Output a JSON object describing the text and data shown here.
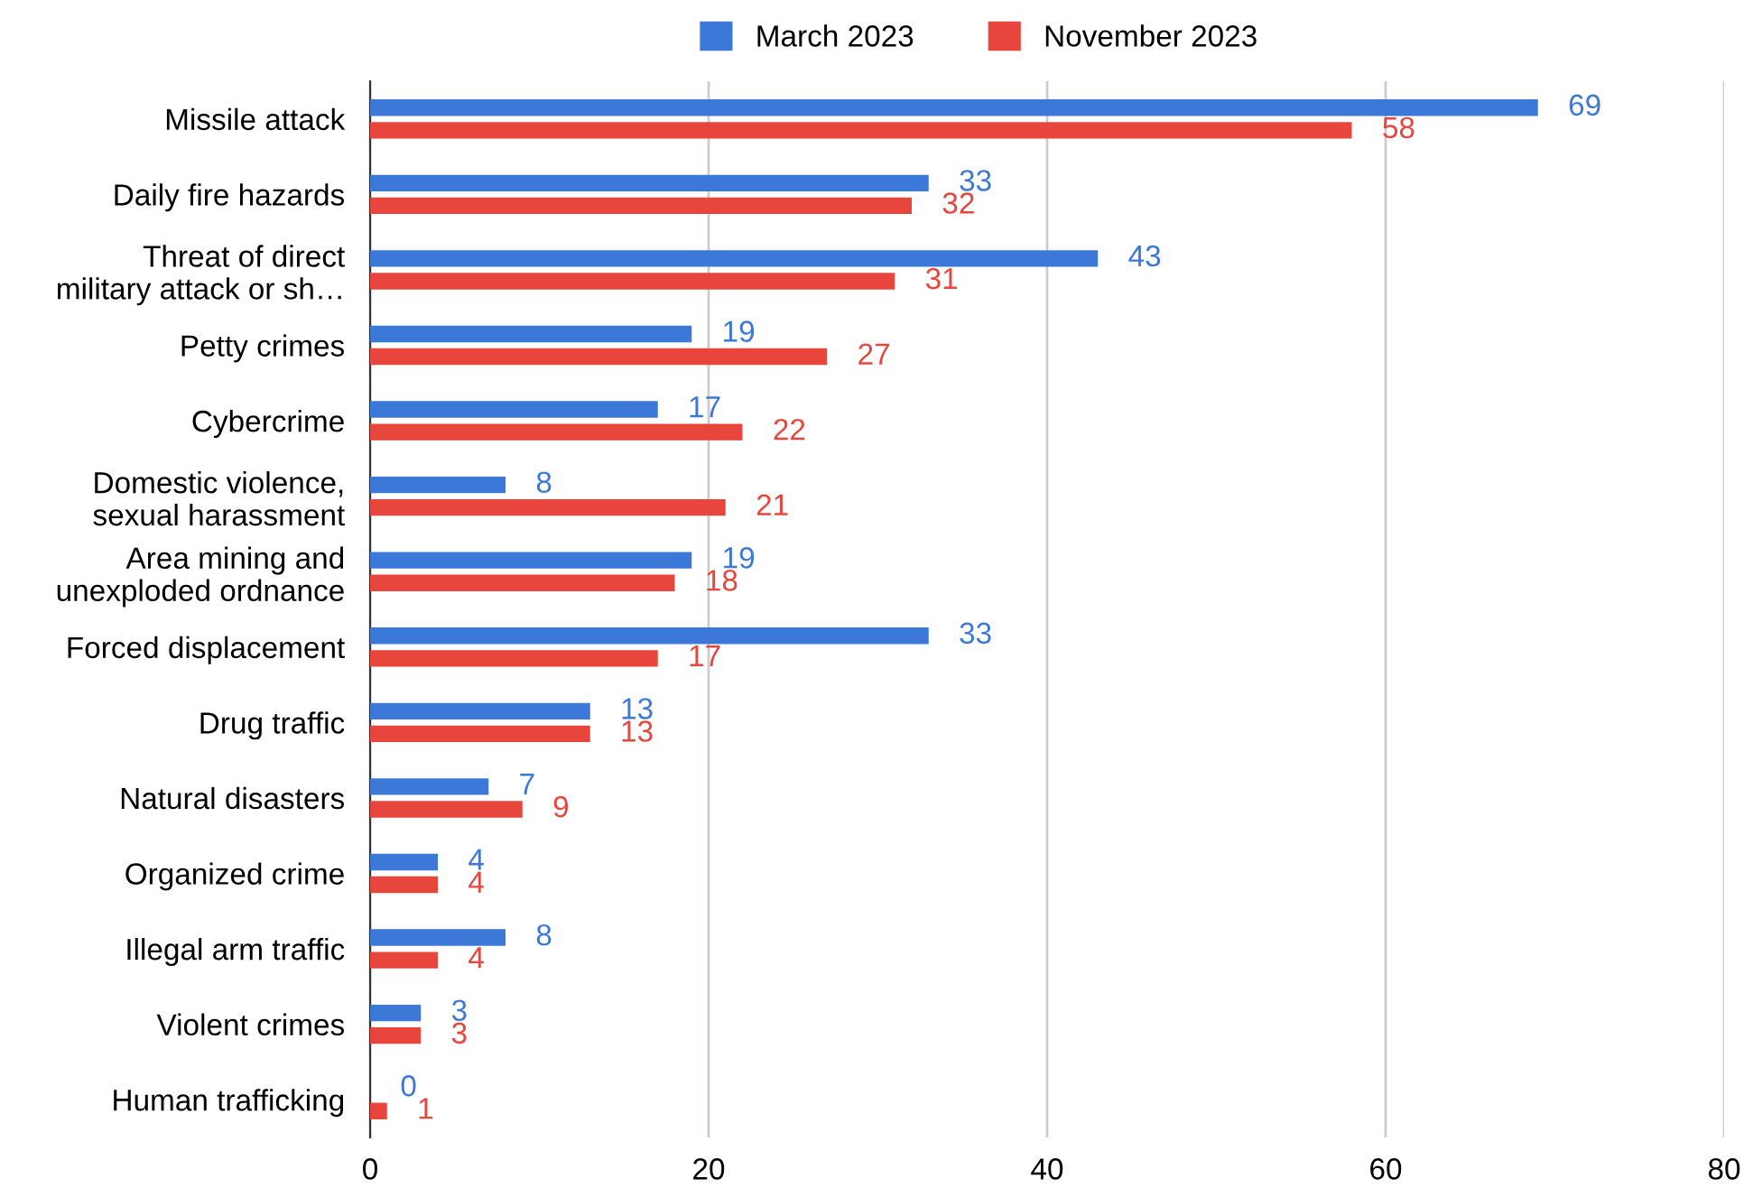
{
  "chart_data": {
    "type": "bar",
    "orientation": "horizontal",
    "categories": [
      "Missile attack",
      "Daily fire hazards",
      "Threat of direct\nmilitary attack or sh…",
      "Petty crimes",
      "Cybercrime",
      "Domestic violence,\nsexual harassment",
      "Area mining and\nunexploded ordnance",
      "Forced displacement",
      "Drug traffic",
      "Natural disasters",
      "Organized crime",
      "Illegal arm traffic",
      "Violent crimes",
      "Human trafficking"
    ],
    "series": [
      {
        "name": "March 2023",
        "color": "#3c78d8",
        "values": [
          69,
          33,
          43,
          19,
          17,
          8,
          19,
          33,
          13,
          7,
          4,
          8,
          3,
          0
        ]
      },
      {
        "name": "November 2023",
        "color": "#e8453c",
        "values": [
          58,
          32,
          31,
          27,
          22,
          21,
          18,
          17,
          13,
          9,
          4,
          4,
          3,
          1
        ]
      }
    ],
    "xlim": [
      0,
      80
    ],
    "xticks": [
      0,
      20,
      40,
      60,
      80
    ],
    "grid": "x",
    "legend": "top",
    "data_labels": true
  }
}
